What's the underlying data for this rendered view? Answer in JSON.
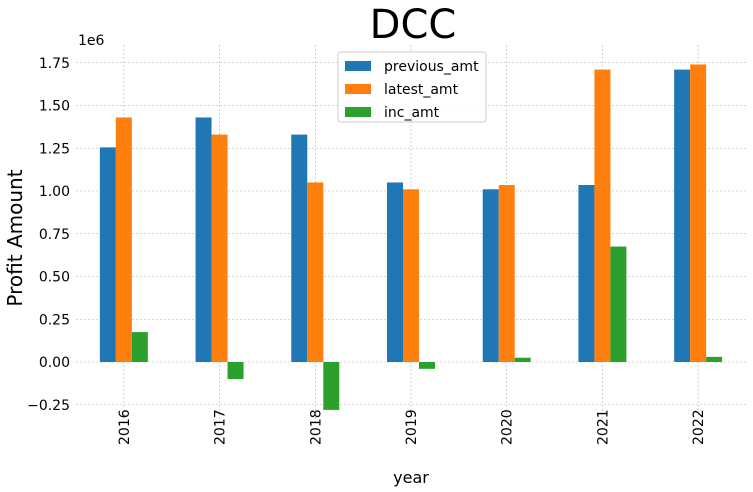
{
  "chart_data": {
    "type": "bar",
    "title": "DCC",
    "xlabel": "year",
    "ylabel": "Profit Amount",
    "y_scale_label": "1e6",
    "categories": [
      "2016",
      "2017",
      "2018",
      "2019",
      "2020",
      "2021",
      "2022"
    ],
    "series": [
      {
        "name": "previous_amt",
        "color": "#1f77b4",
        "values": [
          1.255,
          1.43,
          1.33,
          1.05,
          1.01,
          1.035,
          1.71
        ]
      },
      {
        "name": "latest_amt",
        "color": "#ff7f0e",
        "values": [
          1.43,
          1.33,
          1.05,
          1.01,
          1.035,
          1.71,
          1.74
        ]
      },
      {
        "name": "inc_amt",
        "color": "#2ca02c",
        "values": [
          0.175,
          -0.1,
          -0.28,
          -0.04,
          0.025,
          0.675,
          0.03
        ]
      }
    ],
    "yticks": [
      "−0.25",
      "0.00",
      "0.25",
      "0.50",
      "0.75",
      "1.00",
      "1.25",
      "1.50",
      "1.75"
    ],
    "ylim": [
      -0.35,
      1.85
    ],
    "grid": true,
    "legend_position": "top-center"
  }
}
